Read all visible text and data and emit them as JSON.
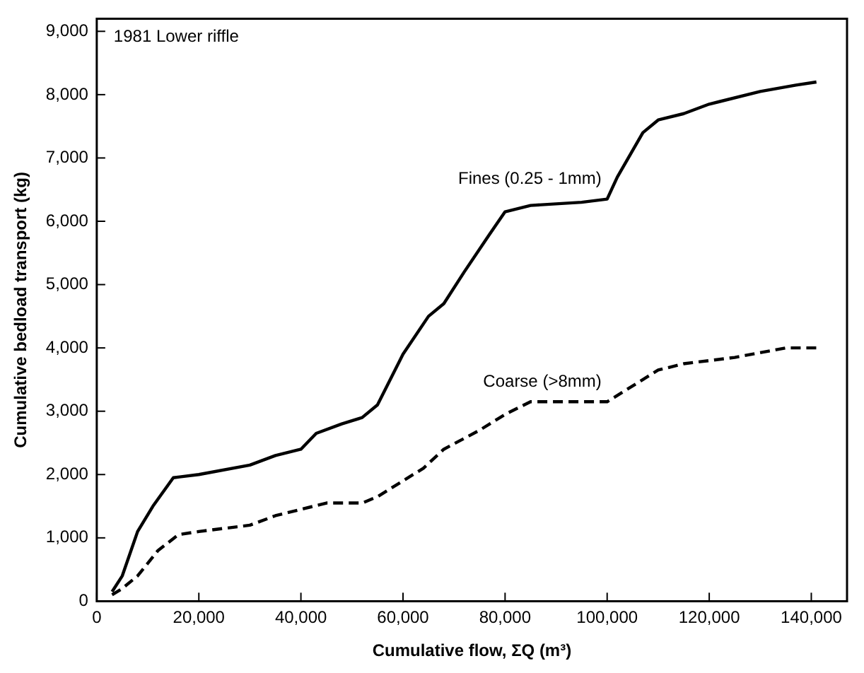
{
  "chart_data": {
    "type": "line",
    "xlabel": "Cumulative flow, ΣQ (m³)",
    "ylabel": "Cumulative bedload transport (kg)",
    "annotations": [
      "1981 Lower riffle"
    ],
    "xlim": [
      0,
      147000
    ],
    "ylim": [
      0,
      9200
    ],
    "xticks": [
      0,
      {
        "value": 20000,
        "label": "20,000"
      },
      {
        "value": 40000,
        "label": "40,000"
      },
      {
        "value": 60000,
        "label": "60,000"
      },
      {
        "value": 80000,
        "label": "80,000"
      },
      {
        "value": 100000,
        "label": "100,000"
      },
      {
        "value": 120000,
        "label": "120,000"
      },
      {
        "value": 140000,
        "label": "140,000"
      }
    ],
    "yticks": [
      0,
      {
        "value": 1000,
        "label": "1,000"
      },
      {
        "value": 2000,
        "label": "2,000"
      },
      {
        "value": 3000,
        "label": "3,000"
      },
      {
        "value": 4000,
        "label": "4,000"
      },
      {
        "value": 5000,
        "label": "5,000"
      },
      {
        "value": 6000,
        "label": "6,000"
      },
      {
        "value": 7000,
        "label": "7,000"
      },
      {
        "value": 8000,
        "label": "8,000"
      },
      {
        "value": 9000,
        "label": "9,000"
      }
    ],
    "grid": false,
    "legend": false,
    "marker": "none",
    "series": [
      {
        "name": "Fines (0.25 - 1mm)",
        "color": "#000000",
        "line_style": "solid",
        "x": [
          3000,
          5000,
          8000,
          11000,
          15000,
          20000,
          30000,
          35000,
          40000,
          43000,
          48000,
          52000,
          55000,
          60000,
          65000,
          68000,
          72000,
          77000,
          80000,
          85000,
          95000,
          100000,
          102000,
          107000,
          110000,
          115000,
          120000,
          130000,
          137000,
          141000
        ],
        "values": [
          150,
          400,
          1100,
          1500,
          1950,
          2000,
          2150,
          2300,
          2400,
          2650,
          2800,
          2900,
          3100,
          3900,
          4500,
          4700,
          5200,
          5800,
          6150,
          6250,
          6300,
          6350,
          6700,
          7400,
          7600,
          7700,
          7850,
          8050,
          8150,
          8200
        ]
      },
      {
        "name": "Coarse (>8mm)",
        "color": "#000000",
        "line_style": "dashed",
        "x": [
          3000,
          5000,
          8000,
          12000,
          16000,
          20000,
          30000,
          35000,
          40000,
          45000,
          52000,
          55000,
          60000,
          64000,
          68000,
          75000,
          80000,
          85000,
          100000,
          105000,
          110000,
          115000,
          125000,
          135000,
          141000
        ],
        "values": [
          100,
          200,
          400,
          800,
          1050,
          1100,
          1200,
          1350,
          1450,
          1550,
          1550,
          1650,
          1900,
          2100,
          2400,
          2700,
          2950,
          3150,
          3150,
          3400,
          3650,
          3750,
          3850,
          4000,
          4000
        ]
      }
    ]
  }
}
